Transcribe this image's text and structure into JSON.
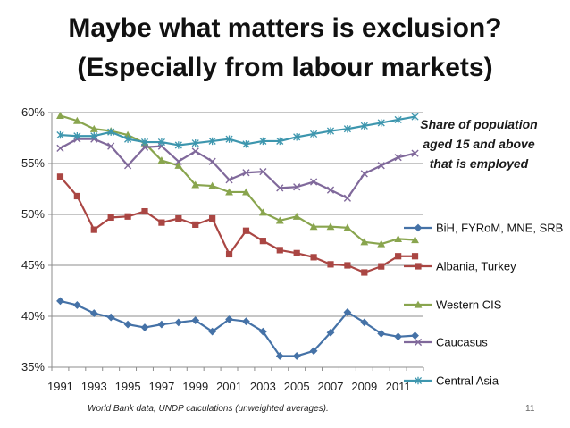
{
  "slide": {
    "title_line1": "Maybe what matters is exclusion?",
    "title_line2": "(Especially from labour markets)",
    "footer": "World Bank data, UNDP calculations (unweighted averages).",
    "page_number": "11"
  },
  "chart_data": {
    "type": "line",
    "title": "",
    "xlabel": "",
    "ylabel": "",
    "ylim": [
      35,
      60
    ],
    "y_ticks": [
      "35%",
      "40%",
      "45%",
      "50%",
      "55%",
      "60%"
    ],
    "x_ticks": [
      "1991",
      "1993",
      "1995",
      "1997",
      "1999",
      "2001",
      "2003",
      "2005",
      "2007",
      "2009",
      "2011"
    ],
    "annotation": [
      "Share of population",
      "aged 15 and above",
      "that is employed"
    ],
    "legend_position": "right",
    "x": [
      1991,
      1992,
      1993,
      1994,
      1995,
      1996,
      1997,
      1998,
      1999,
      2000,
      2001,
      2002,
      2003,
      2004,
      2005,
      2006,
      2007,
      2008,
      2009,
      2010,
      2011,
      2012
    ],
    "series": [
      {
        "name": "BiH, FYRoM, MNE, SRB",
        "color": "#4572A7",
        "marker": "diamond",
        "values": [
          41.5,
          41.1,
          40.3,
          39.9,
          39.2,
          38.9,
          39.2,
          39.4,
          39.6,
          38.5,
          39.7,
          39.5,
          38.5,
          36.1,
          36.1,
          36.6,
          38.4,
          40.4,
          39.4,
          38.3,
          38.0,
          38.1
        ]
      },
      {
        "name": "Albania, Turkey",
        "color": "#AA4643",
        "marker": "square",
        "values": [
          53.7,
          51.8,
          48.5,
          49.7,
          49.8,
          50.3,
          49.2,
          49.6,
          49.0,
          49.6,
          46.1,
          48.4,
          47.4,
          46.5,
          46.2,
          45.8,
          45.1,
          45.0,
          44.3,
          44.9,
          45.9,
          45.9
        ]
      },
      {
        "name": "Western CIS",
        "color": "#89A54E",
        "marker": "triangle",
        "values": [
          59.7,
          59.2,
          58.4,
          58.2,
          57.8,
          57.0,
          55.3,
          54.8,
          52.9,
          52.8,
          52.2,
          52.2,
          50.2,
          49.4,
          49.8,
          48.8,
          48.8,
          48.7,
          47.3,
          47.1,
          47.6,
          47.5
        ]
      },
      {
        "name": "Caucasus",
        "color": "#80699B",
        "marker": "x",
        "values": [
          56.5,
          57.4,
          57.4,
          56.7,
          54.8,
          56.6,
          56.7,
          55.2,
          56.2,
          55.2,
          53.4,
          54.1,
          54.2,
          52.6,
          52.7,
          53.2,
          52.4,
          51.6,
          54.0,
          54.8,
          55.6,
          56.0
        ]
      },
      {
        "name": "Central Asia",
        "color": "#3D96AE",
        "marker": "star",
        "values": [
          57.8,
          57.7,
          57.7,
          58.1,
          57.4,
          57.1,
          57.1,
          56.8,
          57.0,
          57.2,
          57.4,
          56.9,
          57.2,
          57.2,
          57.6,
          57.9,
          58.2,
          58.4,
          58.7,
          59.0,
          59.3,
          59.6
        ]
      }
    ]
  }
}
